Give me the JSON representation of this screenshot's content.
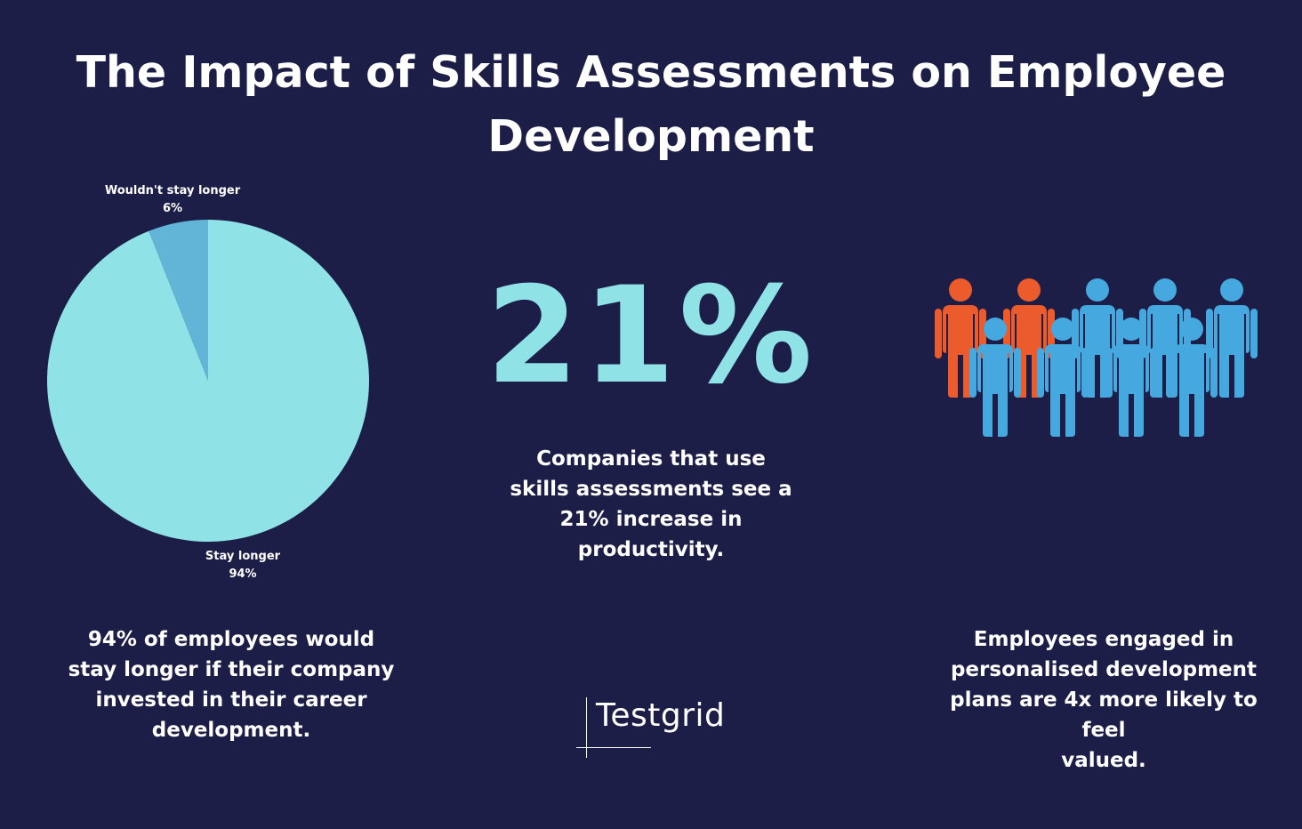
{
  "title": {
    "line1": "The Impact of Skills Assessments on Employee",
    "line2": "Development"
  },
  "chart_data": {
    "type": "pie",
    "slices": [
      {
        "label": "Stay longer",
        "value": 94,
        "value_label": "94%",
        "color": "#8fe3e6"
      },
      {
        "label": "Wouldn't stay longer",
        "value": 6,
        "value_label": "6%",
        "color": "#62b5d6"
      }
    ]
  },
  "stats": {
    "productivity_value": "21%",
    "productivity_caption": [
      "Companies that use",
      "skills assessments see a",
      "21% increase in",
      "productivity."
    ],
    "retention_caption": [
      "94% of employees would",
      "stay longer if their company",
      "invested in their career",
      "development."
    ],
    "valued_caption": [
      "Employees engaged in",
      "personalised development",
      "plans are 4x more likely to feel",
      "valued."
    ]
  },
  "people_icon": {
    "icon": "people-group-icon",
    "highlight_color": "#ec5b2c",
    "base_color": "#45a8df"
  },
  "brand": {
    "name": "Testgrid"
  }
}
